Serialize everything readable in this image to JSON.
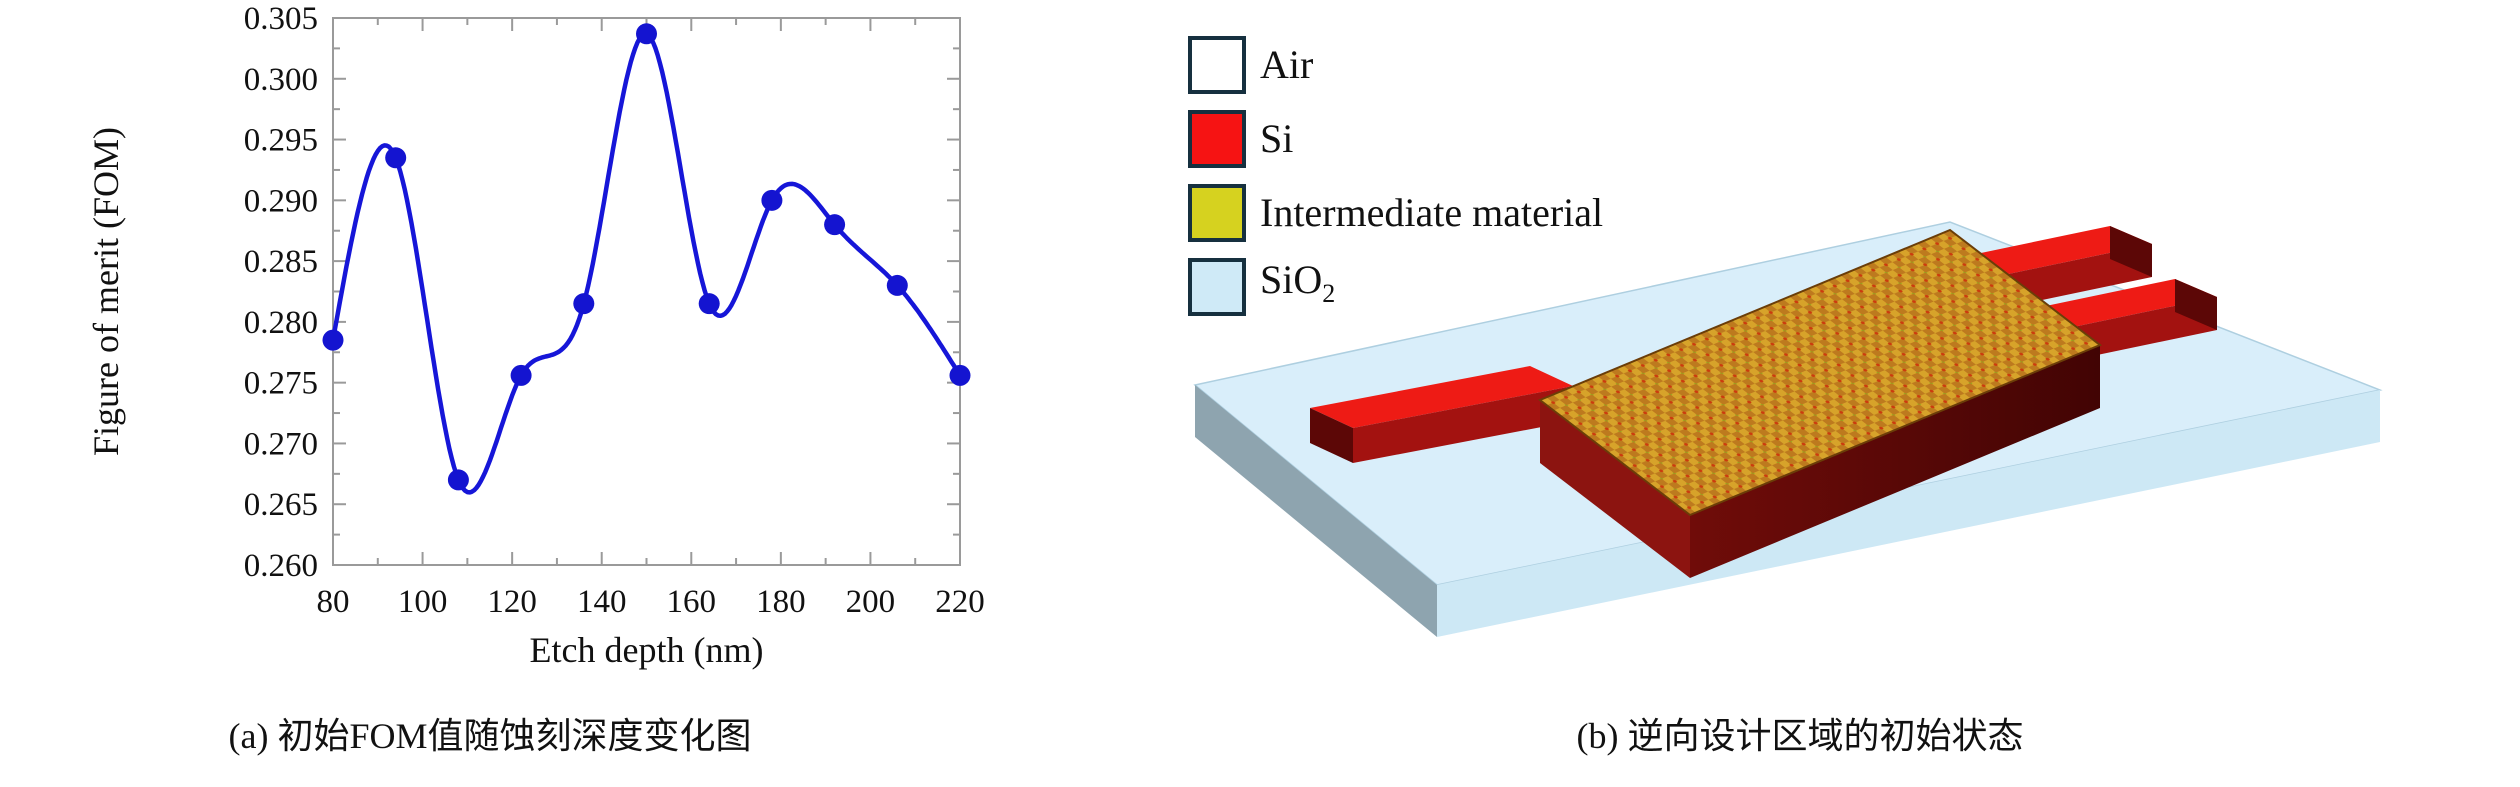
{
  "figure": {
    "panel_a_caption": "(a) 初始FOM值随蚀刻深度变化图",
    "panel_b_caption": "(b) 逆向设计区域的初始状态"
  },
  "chart_data": {
    "type": "line",
    "title": "",
    "xlabel": "Etch depth (nm)",
    "ylabel": "Figure of merit (FOM)",
    "x": [
      80,
      94,
      108,
      122,
      136,
      150,
      164,
      178,
      192,
      206,
      220
    ],
    "y": [
      0.2785,
      0.2935,
      0.267,
      0.2756,
      0.2815,
      0.3037,
      0.2815,
      0.29,
      0.288,
      0.283,
      0.2756
    ],
    "xlim": [
      80,
      220
    ],
    "ylim": [
      0.26,
      0.305
    ],
    "x_ticks": [
      80,
      100,
      120,
      140,
      160,
      180,
      200,
      220
    ],
    "y_ticks": [
      0.26,
      0.265,
      0.27,
      0.275,
      0.28,
      0.285,
      0.29,
      0.295,
      0.3,
      0.305
    ],
    "grid": false,
    "line_style": "smooth-spline-with-markers",
    "legend_position": "none"
  },
  "legend": {
    "items": [
      {
        "label": "Air",
        "sub": "",
        "fill": "#ffffff"
      },
      {
        "label": "Si",
        "sub": "",
        "fill": "#f61313"
      },
      {
        "label": "Intermediate material",
        "sub": "",
        "fill": "#d6d21f"
      },
      {
        "label": "SiO",
        "sub": "2",
        "fill": "#cfeaf7"
      }
    ],
    "swatch_border": "#16303f"
  },
  "colors": {
    "curve": "#1616d8",
    "marker": "#1414d0",
    "axis": "#9a9a9a",
    "tick_label": "#111111",
    "slab_top": "#d9eefa",
    "slab_front": "#cde8f5",
    "slab_left": "#8ea4af",
    "wg_top": "#ee1b15",
    "wg_front": "#a31210",
    "wg_end": "#5c0706",
    "design_front_left": "#8c1410",
    "design_front_right_a": "#700c09",
    "design_front_right_b": "#420404",
    "checker_gold": "#d7a32a",
    "checker_orange": "#bd7a1e",
    "checker_red_dot": "#cc3b0e",
    "checker_green_dot": "#8fae1f",
    "design_outline": "#6b3d08"
  }
}
